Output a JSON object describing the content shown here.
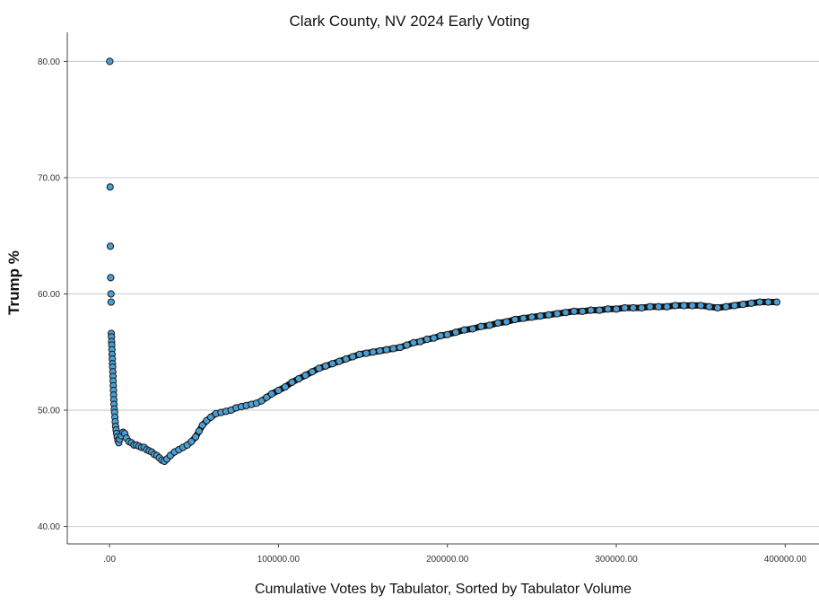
{
  "chart_data": {
    "type": "scatter",
    "title": "Clark County, NV 2024 Early Voting",
    "xlabel": "Cumulative Votes by Tabulator, Sorted by Tabulator Volume",
    "ylabel": "Trump %",
    "xlim": [
      -25000,
      420000
    ],
    "ylim": [
      38.5,
      82.5
    ],
    "x_ticks": [
      0,
      100000,
      200000,
      300000,
      400000
    ],
    "x_tick_labels": [
      ".00",
      "100000.00",
      "200000.00",
      "300000.00",
      "400000.00"
    ],
    "y_ticks": [
      40,
      50,
      60,
      70,
      80
    ],
    "y_tick_labels": [
      "40.00",
      "50.00",
      "60.00",
      "70.00",
      "80.00"
    ],
    "grid": "horizontal",
    "marker_color": "#4a9fd4",
    "marker_edge_color": "#1c1c1c",
    "points": [
      [
        150,
        80.0
      ],
      [
        350,
        69.2
      ],
      [
        500,
        64.1
      ],
      [
        700,
        61.4
      ],
      [
        850,
        60.0
      ],
      [
        950,
        59.3
      ],
      [
        1050,
        56.6
      ],
      [
        1150,
        56.3
      ],
      [
        1250,
        55.9
      ],
      [
        1350,
        55.6
      ],
      [
        1450,
        55.2
      ],
      [
        1550,
        54.8
      ],
      [
        1650,
        54.4
      ],
      [
        1750,
        54.0
      ],
      [
        1850,
        53.7
      ],
      [
        1950,
        53.3
      ],
      [
        2050,
        52.9
      ],
      [
        2150,
        52.5
      ],
      [
        2250,
        52.1
      ],
      [
        2350,
        51.7
      ],
      [
        2450,
        51.3
      ],
      [
        2550,
        50.9
      ],
      [
        2700,
        50.5
      ],
      [
        2850,
        50.1
      ],
      [
        3000,
        49.8
      ],
      [
        3200,
        49.4
      ],
      [
        3400,
        49.0
      ],
      [
        3600,
        48.6
      ],
      [
        3900,
        48.3
      ],
      [
        4200,
        48.0
      ],
      [
        4600,
        47.7
      ],
      [
        5000,
        47.4
      ],
      [
        5500,
        47.2
      ],
      [
        6000,
        47.5
      ],
      [
        7000,
        47.8
      ],
      [
        8000,
        48.1
      ],
      [
        9000,
        48.0
      ],
      [
        10000,
        47.6
      ],
      [
        11500,
        47.3
      ],
      [
        13000,
        47.2
      ],
      [
        14500,
        47.0
      ],
      [
        16000,
        47.0
      ],
      [
        17500,
        46.9
      ],
      [
        19000,
        46.8
      ],
      [
        20500,
        46.8
      ],
      [
        22000,
        46.6
      ],
      [
        23500,
        46.5
      ],
      [
        25000,
        46.4
      ],
      [
        26500,
        46.2
      ],
      [
        28000,
        46.1
      ],
      [
        29500,
        45.9
      ],
      [
        31000,
        45.7
      ],
      [
        32500,
        45.6
      ],
      [
        34000,
        45.8
      ],
      [
        36000,
        46.1
      ],
      [
        38500,
        46.4
      ],
      [
        41000,
        46.6
      ],
      [
        43500,
        46.8
      ],
      [
        46000,
        47.0
      ],
      [
        48500,
        47.3
      ],
      [
        51000,
        47.7
      ],
      [
        53000,
        48.2
      ],
      [
        55000,
        48.7
      ],
      [
        57500,
        49.1
      ],
      [
        60000,
        49.4
      ],
      [
        63000,
        49.7
      ],
      [
        66000,
        49.8
      ],
      [
        69000,
        49.9
      ],
      [
        72000,
        50.0
      ],
      [
        75000,
        50.2
      ],
      [
        78000,
        50.3
      ],
      [
        81000,
        50.4
      ],
      [
        84000,
        50.5
      ],
      [
        87000,
        50.6
      ],
      [
        90000,
        50.8
      ],
      [
        93000,
        51.1
      ],
      [
        96000,
        51.4
      ],
      [
        100000,
        51.7
      ],
      [
        104000,
        52.0
      ],
      [
        108000,
        52.4
      ],
      [
        112000,
        52.7
      ],
      [
        116000,
        53.0
      ],
      [
        120000,
        53.3
      ],
      [
        124000,
        53.6
      ],
      [
        128000,
        53.8
      ],
      [
        132000,
        54.0
      ],
      [
        136000,
        54.2
      ],
      [
        140000,
        54.4
      ],
      [
        144000,
        54.6
      ],
      [
        148000,
        54.8
      ],
      [
        152000,
        54.9
      ],
      [
        156000,
        55.0
      ],
      [
        160000,
        55.1
      ],
      [
        164000,
        55.2
      ],
      [
        168000,
        55.3
      ],
      [
        172000,
        55.4
      ],
      [
        176000,
        55.6
      ],
      [
        180000,
        55.8
      ],
      [
        184000,
        55.9
      ],
      [
        188000,
        56.1
      ],
      [
        192000,
        56.2
      ],
      [
        196000,
        56.4
      ],
      [
        200000,
        56.5
      ],
      [
        205000,
        56.7
      ],
      [
        210000,
        56.9
      ],
      [
        215000,
        57.0
      ],
      [
        220000,
        57.2
      ],
      [
        225000,
        57.3
      ],
      [
        230000,
        57.5
      ],
      [
        235000,
        57.6
      ],
      [
        240000,
        57.8
      ],
      [
        245000,
        57.9
      ],
      [
        250000,
        58.0
      ],
      [
        255000,
        58.1
      ],
      [
        260000,
        58.2
      ],
      [
        265000,
        58.3
      ],
      [
        270000,
        58.4
      ],
      [
        275000,
        58.5
      ],
      [
        280000,
        58.5
      ],
      [
        285000,
        58.6
      ],
      [
        290000,
        58.6
      ],
      [
        295000,
        58.7
      ],
      [
        300000,
        58.7
      ],
      [
        305000,
        58.8
      ],
      [
        310000,
        58.8
      ],
      [
        315000,
        58.8
      ],
      [
        320000,
        58.9
      ],
      [
        325000,
        58.9
      ],
      [
        330000,
        58.9
      ],
      [
        335000,
        59.0
      ],
      [
        340000,
        59.0
      ],
      [
        345000,
        59.0
      ],
      [
        350000,
        59.0
      ],
      [
        355000,
        58.9
      ],
      [
        360000,
        58.8
      ],
      [
        365000,
        58.9
      ],
      [
        370000,
        59.0
      ],
      [
        375000,
        59.1
      ],
      [
        380000,
        59.2
      ],
      [
        385000,
        59.3
      ],
      [
        390000,
        59.3
      ],
      [
        395000,
        59.3
      ]
    ]
  }
}
